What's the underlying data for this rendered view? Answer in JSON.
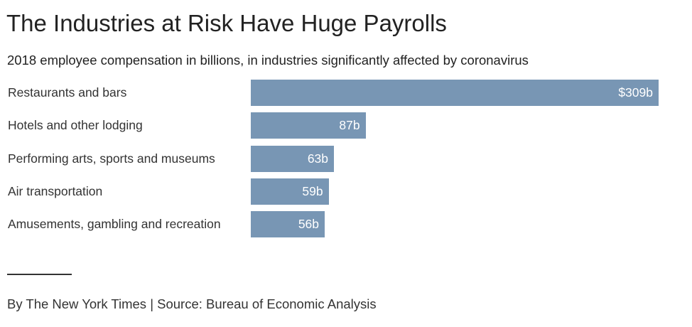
{
  "header": {
    "title": "The Industries at Risk Have Huge Payrolls",
    "subtitle": "2018 employee compensation in billions, in industries significantly affected by coronavirus"
  },
  "chart_data": {
    "type": "bar",
    "orientation": "horizontal",
    "title": "The Industries at Risk Have Huge Payrolls",
    "subtitle": "2018 employee compensation in billions, in industries significantly affected by coronavirus",
    "categories": [
      "Restaurants and bars",
      "Hotels and other lodging",
      "Performing arts, sports and museums",
      "Air transportation",
      "Amusements, gambling and recreation"
    ],
    "values": [
      309,
      87,
      63,
      59,
      56
    ],
    "value_labels": [
      "$309b",
      "87b",
      "63b",
      "59b",
      "56b"
    ],
    "unit": "billions of dollars",
    "xlim": [
      0,
      309
    ],
    "bar_color": "#7896b4",
    "grid": false
  },
  "footer": {
    "credit": "By The New York Times | Source: Bureau of Economic Analysis"
  }
}
